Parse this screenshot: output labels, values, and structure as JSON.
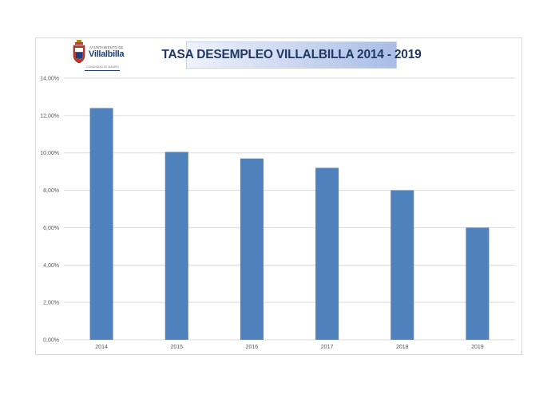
{
  "logo": {
    "line1": "AYUNTAMIENTO DE",
    "line2": "Villalbilla",
    "line3": "COMUNIDAD DE MADRID"
  },
  "chart_data": {
    "type": "bar",
    "title": "TASA DESEMPLEO VILLALBILLA 2014 - 2019",
    "categories": [
      "2014",
      "2015",
      "2016",
      "2017",
      "2018",
      "2019"
    ],
    "values": [
      12.4,
      10.05,
      9.7,
      9.2,
      8.0,
      6.0
    ],
    "ylim": [
      0,
      14
    ],
    "yticks": [
      "0,00%",
      "2,00%",
      "4,00%",
      "6,00%",
      "8,00%",
      "10,00%",
      "12,00%",
      "14,00%"
    ],
    "grid": true,
    "bar_color": "#4f81bd",
    "grid_color": "#d9d9d9"
  }
}
